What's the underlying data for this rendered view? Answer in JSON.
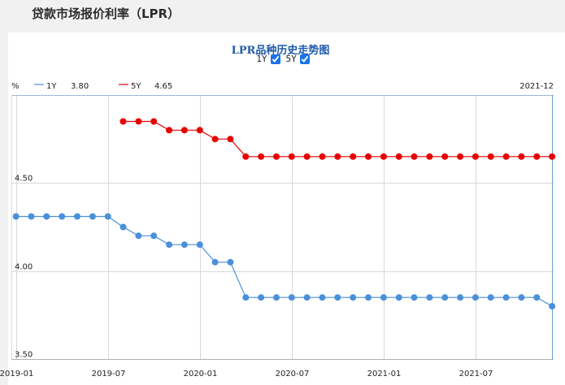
{
  "page": {
    "title": "贷款市场报价利率（LPR）"
  },
  "toggles": [
    {
      "label": "1Y",
      "checked": true
    },
    {
      "label": "5Y",
      "checked": true
    }
  ],
  "chart_data": {
    "type": "line",
    "title": "LPR品种历史走势图",
    "ylabel": "%",
    "ylim": [
      3.5,
      5.0
    ],
    "yticks": [
      3.5,
      4.0,
      4.5
    ],
    "ytick_labels": [
      "3.50",
      "4.00",
      "4.50"
    ],
    "xlim": [
      "2019-01",
      "2021-12"
    ],
    "xticks": [
      "2019-01",
      "2019-07",
      "2020-01",
      "2020-07",
      "2021-01",
      "2021-07"
    ],
    "xtick_labels": [
      "2019-01",
      "2019-07",
      "2020-01",
      "2020-07",
      "2021-01",
      "2021-07"
    ],
    "cursor_label": "2021-12",
    "grid": true,
    "legend_position": "top-left",
    "series": [
      {
        "name": "1Y",
        "legend_value": "3.80",
        "color": "#4a90d9",
        "x": [
          "2019-01",
          "2019-02",
          "2019-03",
          "2019-04",
          "2019-05",
          "2019-06",
          "2019-07",
          "2019-08",
          "2019-09",
          "2019-10",
          "2019-11",
          "2019-12",
          "2020-01",
          "2020-02",
          "2020-03",
          "2020-04",
          "2020-05",
          "2020-06",
          "2020-07",
          "2020-08",
          "2020-09",
          "2020-10",
          "2020-11",
          "2020-12",
          "2021-01",
          "2021-02",
          "2021-03",
          "2021-04",
          "2021-05",
          "2021-06",
          "2021-07",
          "2021-08",
          "2021-09",
          "2021-10",
          "2021-11",
          "2021-12"
        ],
        "values": [
          4.31,
          4.31,
          4.31,
          4.31,
          4.31,
          4.31,
          4.31,
          4.25,
          4.2,
          4.2,
          4.15,
          4.15,
          4.15,
          4.05,
          4.05,
          3.85,
          3.85,
          3.85,
          3.85,
          3.85,
          3.85,
          3.85,
          3.85,
          3.85,
          3.85,
          3.85,
          3.85,
          3.85,
          3.85,
          3.85,
          3.85,
          3.85,
          3.85,
          3.85,
          3.85,
          3.8
        ]
      },
      {
        "name": "5Y",
        "legend_value": "4.65",
        "color": "#e60000",
        "x": [
          "2019-08",
          "2019-09",
          "2019-10",
          "2019-11",
          "2019-12",
          "2020-01",
          "2020-02",
          "2020-03",
          "2020-04",
          "2020-05",
          "2020-06",
          "2020-07",
          "2020-08",
          "2020-09",
          "2020-10",
          "2020-11",
          "2020-12",
          "2021-01",
          "2021-02",
          "2021-03",
          "2021-04",
          "2021-05",
          "2021-06",
          "2021-07",
          "2021-08",
          "2021-09",
          "2021-10",
          "2021-11",
          "2021-12"
        ],
        "values": [
          4.85,
          4.85,
          4.85,
          4.8,
          4.8,
          4.8,
          4.75,
          4.75,
          4.65,
          4.65,
          4.65,
          4.65,
          4.65,
          4.65,
          4.65,
          4.65,
          4.65,
          4.65,
          4.65,
          4.65,
          4.65,
          4.65,
          4.65,
          4.65,
          4.65,
          4.65,
          4.65,
          4.65,
          4.65
        ]
      }
    ]
  }
}
